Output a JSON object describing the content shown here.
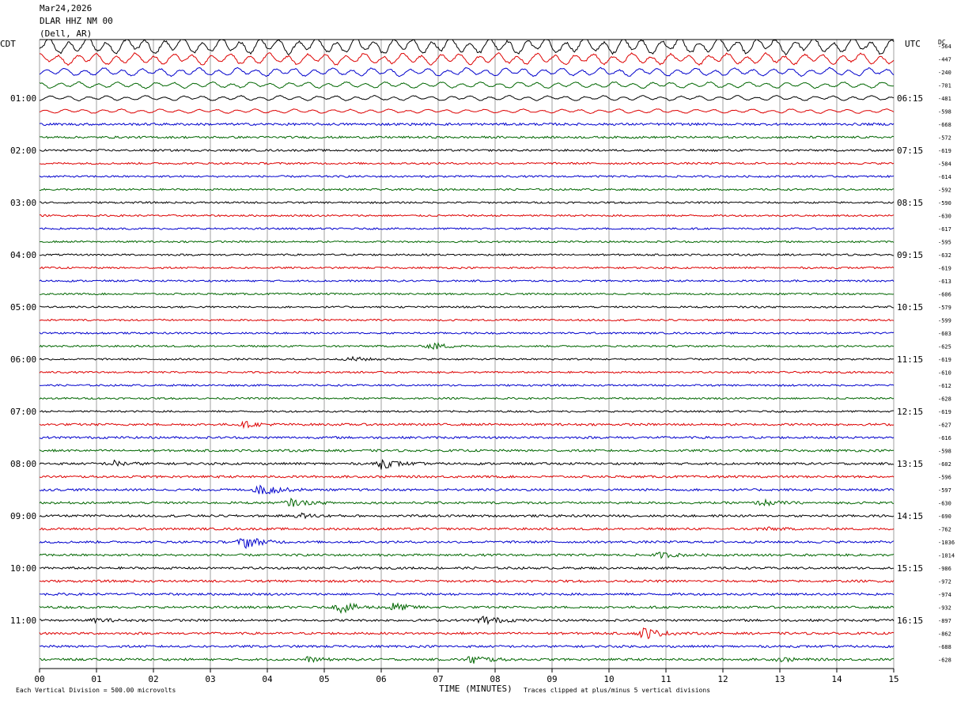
{
  "header": {
    "date": "Mar24,2026",
    "station": "DLAR HHZ NM 00",
    "location": "(Dell, AR)"
  },
  "left_zone_label": "CDT",
  "right_zone_label": "UTC",
  "dc_label": "DC",
  "footer": {
    "division": "Each Vertical Division =  500.00 microvolts",
    "xlabel": "TIME (MINUTES)",
    "clip_note": "Traces clipped at plus/minus 5 vertical divisions"
  },
  "chart_data": {
    "type": "line",
    "title": "",
    "xlabel": "TIME (MINUTES)",
    "ylabel": "",
    "xlim": [
      0,
      15
    ],
    "x_ticks": [
      "00",
      "01",
      "02",
      "03",
      "04",
      "05",
      "06",
      "07",
      "08",
      "09",
      "10",
      "11",
      "12",
      "13",
      "14",
      "15"
    ],
    "grid": true,
    "trace_colors": [
      "#000000",
      "#dd0000",
      "#0000cc",
      "#006600"
    ],
    "left_hour_labels": [
      "01:00",
      "02:00",
      "03:00",
      "04:00",
      "05:00",
      "06:00",
      "07:00",
      "08:00",
      "09:00",
      "10:00",
      "11:00"
    ],
    "right_hour_labels": [
      "06:15",
      "07:15",
      "08:15",
      "09:15",
      "10:15",
      "11:15",
      "12:15",
      "13:15",
      "14:15",
      "15:15",
      "16:15"
    ],
    "dc_offsets": [
      "-564",
      "-447",
      "-240",
      "-701",
      "-481",
      "-598",
      "-668",
      "-572",
      "-619",
      "-584",
      "-614",
      "-592",
      "-590",
      "-630",
      "-617",
      "-595",
      "-632",
      "-619",
      "-613",
      "-606",
      "-579",
      "-599",
      "-603",
      "-625",
      "-619",
      "-610",
      "-612",
      "-628",
      "-619",
      "-627",
      "-616",
      "-598",
      "-602",
      "-596",
      "-597",
      "-630",
      "-690",
      "-762",
      "-1036",
      "-1014",
      "-986",
      "-972",
      "-974",
      "-932",
      "-897",
      "-862",
      "-688",
      "-628"
    ],
    "trace_count": 48,
    "trace_spacing_minutes": 15,
    "first_trace_start": "00:00 CDT",
    "events": [
      {
        "trace": 23,
        "minute": 6.9,
        "amp": 2.0
      },
      {
        "trace": 24,
        "minute": 5.5,
        "amp": 1.2
      },
      {
        "trace": 29,
        "minute": 3.6,
        "amp": 1.4
      },
      {
        "trace": 32,
        "minute": 1.3,
        "amp": 1.5
      },
      {
        "trace": 32,
        "minute": 6.0,
        "amp": 2.8
      },
      {
        "trace": 34,
        "minute": 3.9,
        "amp": 3.6
      },
      {
        "trace": 35,
        "minute": 4.4,
        "amp": 2.0
      },
      {
        "trace": 35,
        "minute": 12.7,
        "amp": 1.6
      },
      {
        "trace": 36,
        "minute": 4.6,
        "amp": 1.2
      },
      {
        "trace": 37,
        "minute": 12.7,
        "amp": 1.0
      },
      {
        "trace": 38,
        "minute": 3.6,
        "amp": 3.6
      },
      {
        "trace": 39,
        "minute": 10.9,
        "amp": 1.4
      },
      {
        "trace": 43,
        "minute": 5.3,
        "amp": 3.0
      },
      {
        "trace": 43,
        "minute": 6.2,
        "amp": 2.4
      },
      {
        "trace": 44,
        "minute": 7.8,
        "amp": 2.6
      },
      {
        "trace": 44,
        "minute": 1.0,
        "amp": 1.0
      },
      {
        "trace": 45,
        "minute": 10.6,
        "amp": 3.4
      },
      {
        "trace": 47,
        "minute": 7.6,
        "amp": 2.6
      },
      {
        "trace": 47,
        "minute": 4.7,
        "amp": 1.2
      },
      {
        "trace": 47,
        "minute": 13.0,
        "amp": 1.0
      }
    ]
  }
}
